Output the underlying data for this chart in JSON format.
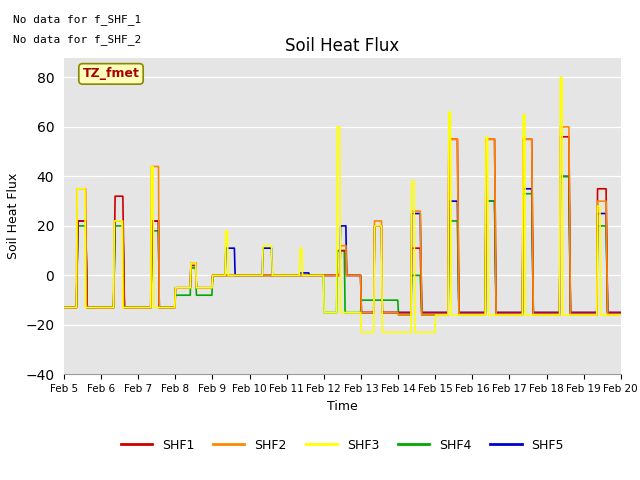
{
  "title": "Soil Heat Flux",
  "xlabel": "Time",
  "ylabel": "Soil Heat Flux",
  "ylim": [
    -40,
    88
  ],
  "yticks": [
    -40,
    -20,
    0,
    20,
    40,
    60,
    80
  ],
  "background_color": "#e5e5e5",
  "fig_bg": "#ffffff",
  "series_colors": {
    "SHF1": "#cc0000",
    "SHF2": "#ff8800",
    "SHF3": "#ffff00",
    "SHF4": "#00aa00",
    "SHF5": "#0000cc"
  },
  "no_data_text_1": "No data for f_SHF_1",
  "no_data_text_2": "No data for f_SHF_2",
  "tz_label": "TZ_fmet",
  "tz_label_color": "#aa0000",
  "tz_bg_color": "#ffffbb",
  "x_tick_labels": [
    "Feb 5",
    "Feb 6",
    "Feb 7",
    "Feb 8",
    "Feb 9",
    "Feb 10",
    "Feb 11",
    "Feb 12",
    "Feb 13",
    "Feb 14",
    "Feb 15",
    "Feb 16",
    "Feb 17",
    "Feb 18",
    "Feb 19",
    "Feb 20"
  ]
}
